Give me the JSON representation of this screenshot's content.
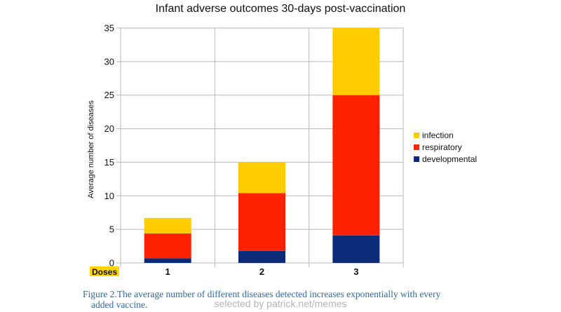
{
  "chart_data": {
    "type": "bar",
    "stacked": true,
    "title": "Infant adverse outcomes 30-days post-vaccination",
    "xlabel": "Doses",
    "ylabel": "Average number of diseases",
    "categories": [
      "1",
      "2",
      "3"
    ],
    "ylim": [
      0,
      35
    ],
    "yticks": [
      0,
      5,
      10,
      15,
      20,
      25,
      30,
      35
    ],
    "grid": true,
    "legend_position": "right",
    "series": [
      {
        "name": "developmental",
        "color": "#0b2a78",
        "values": [
          0.7,
          1.8,
          4.1
        ]
      },
      {
        "name": "respiratory",
        "color": "#ff2200",
        "values": [
          3.7,
          8.6,
          20.9
        ]
      },
      {
        "name": "infection",
        "color": "#ffcc00",
        "values": [
          2.3,
          4.6,
          10.0
        ]
      }
    ]
  },
  "caption": {
    "line1": "Figure 2.The average number of different diseases detected increases exponentially with every",
    "line2": "added vaccine."
  },
  "watermark": "selected by patrick.net/memes"
}
